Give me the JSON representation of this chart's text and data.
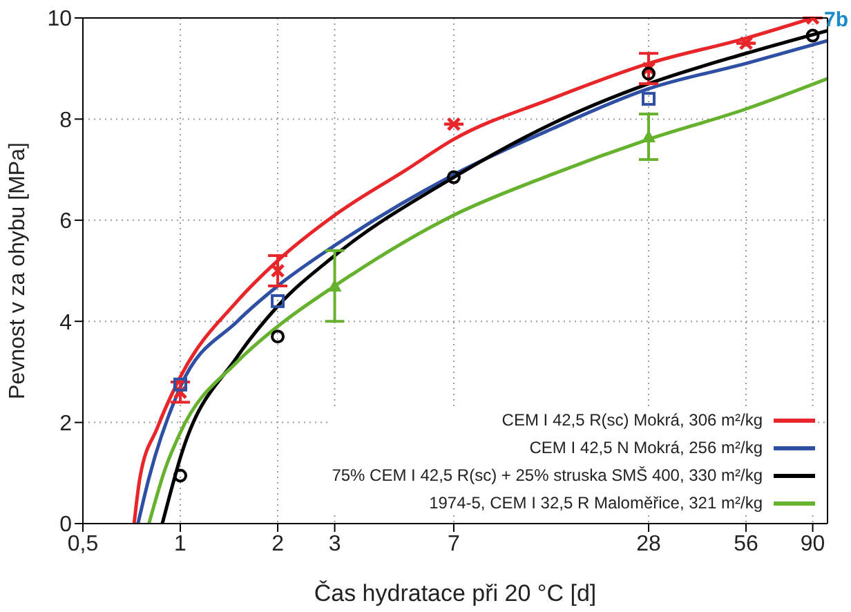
{
  "chart_data": {
    "type": "scatter",
    "xlabel": "Čas hydratace při 20 °C [d]",
    "ylabel": "Pevnost v za ohybu [MPa]",
    "annotations": [
      "7b"
    ],
    "log": "x",
    "xlim": [
      0.5,
      100
    ],
    "xticks": [
      {
        "value": 0.5,
        "label": "0,5"
      },
      1,
      2,
      3,
      7,
      28,
      56,
      90
    ],
    "ylim": [
      0,
      10
    ],
    "yticks": [
      0,
      2,
      4,
      6,
      8,
      10
    ],
    "grid": true,
    "legend": "bottom right",
    "series": [
      {
        "type": "line",
        "name": "CEM I 42,5 R(sc) Mokrá, 306 m²/kg",
        "color": "#e8262a",
        "x": [
          0.72,
          0.75,
          0.85,
          1,
          1.5,
          2,
          3,
          5,
          7,
          14,
          28,
          56,
          90
        ],
        "values": [
          0,
          0.9,
          1.9,
          2.9,
          4.4,
          5.2,
          6.1,
          7.0,
          7.6,
          8.4,
          9.1,
          9.6,
          10
        ]
      },
      {
        "type": "line",
        "name": "CEM I 42,5 N Mokrá, 256 m²/kg",
        "color": "#2e4fa3",
        "x": [
          0.74,
          0.8,
          1,
          1.5,
          2,
          3,
          7,
          14,
          28,
          56,
          100
        ],
        "values": [
          0,
          0.9,
          2.7,
          4.0,
          4.7,
          5.5,
          6.9,
          7.8,
          8.6,
          9.1,
          9.55
        ]
      },
      {
        "type": "line",
        "name": "75% CEM I 42,5 R(sc) + 25% struska SMŠ 400, 330 m²/kg",
        "color": "#000000",
        "x": [
          0.88,
          0.95,
          1,
          1.5,
          2,
          3,
          7,
          14,
          28,
          56,
          100
        ],
        "values": [
          0,
          0.8,
          1.3,
          3.3,
          4.3,
          5.3,
          6.85,
          7.9,
          8.7,
          9.3,
          9.75
        ]
      },
      {
        "type": "line",
        "name": "1974-5, CEM I 32,5 R Maloměřice, 321 m²/kg",
        "color": "#66b22f",
        "x": [
          0.8,
          0.9,
          1,
          1.5,
          2,
          3,
          7,
          14,
          28,
          56,
          100
        ],
        "values": [
          0,
          1.1,
          1.8,
          3.2,
          3.9,
          4.7,
          6.1,
          6.9,
          7.6,
          8.2,
          8.8
        ]
      },
      {
        "color": "#e8262a",
        "marker": "cross",
        "x": [
          1,
          2,
          7,
          28,
          56,
          90
        ],
        "values": [
          2.6,
          5.0,
          7.9,
          9.0,
          9.5,
          10
        ],
        "errors": [
          [
            2.4,
            2.8
          ],
          [
            4.7,
            5.3
          ],
          null,
          [
            8.7,
            9.3
          ],
          null,
          null
        ]
      },
      {
        "color": "#2e4fa3",
        "marker": "square",
        "x": [
          1,
          2,
          28
        ],
        "values": [
          2.75,
          4.4,
          8.4
        ]
      },
      {
        "color": "#000000",
        "marker": "circle",
        "x": [
          1,
          2,
          7,
          28,
          90
        ],
        "values": [
          0.95,
          3.7,
          6.85,
          8.9,
          9.65
        ]
      },
      {
        "color": "#66b22f",
        "marker": "triangle",
        "x": [
          3,
          28
        ],
        "values": [
          4.7,
          7.65
        ],
        "errors": [
          [
            4.0,
            5.4
          ],
          [
            7.2,
            8.1
          ]
        ]
      }
    ]
  }
}
